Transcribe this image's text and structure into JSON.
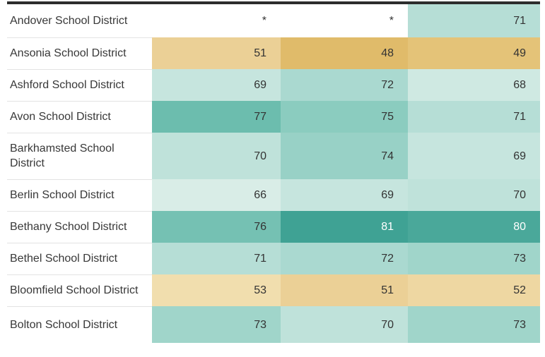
{
  "chart_data": {
    "type": "table",
    "header_visible": false,
    "missing_marker": "*",
    "rows": [
      {
        "label": "Andover School District",
        "values": [
          "*",
          "*",
          71
        ]
      },
      {
        "label": "Ansonia School District",
        "values": [
          51,
          48,
          49
        ]
      },
      {
        "label": "Ashford School District",
        "values": [
          69,
          72,
          68
        ]
      },
      {
        "label": "Avon School District",
        "values": [
          77,
          75,
          71
        ]
      },
      {
        "label": "Barkhamsted School District",
        "values": [
          70,
          74,
          69
        ]
      },
      {
        "label": "Berlin School District",
        "values": [
          66,
          69,
          70
        ]
      },
      {
        "label": "Bethany School District",
        "values": [
          76,
          81,
          80
        ]
      },
      {
        "label": "Bethel School District",
        "values": [
          71,
          72,
          73
        ]
      },
      {
        "label": "Bloomfield School District",
        "values": [
          53,
          51,
          52
        ]
      },
      {
        "label": "Bolton School District",
        "values": [
          73,
          70,
          73
        ]
      }
    ],
    "value_range_observed": [
      48,
      81
    ],
    "layout": {
      "columns": 4,
      "grid": "off",
      "heatmap_shading": true
    }
  },
  "palette": {
    "top_border": "#2d2d2d",
    "row_separator": "#e3e3e3",
    "name_text": "#383838",
    "value_text": "#333333",
    "missing_cell": {
      "bg": "#ffffff",
      "fg": "#333333"
    },
    "scale_low_color": "#e0bb6a",
    "scale_high_color": "#3fa294",
    "value_colors": {
      "48": {
        "bg": "#e0bb6a",
        "fg": "#333333"
      },
      "49": {
        "bg": "#e4c378",
        "fg": "#333333"
      },
      "51": {
        "bg": "#ebd096",
        "fg": "#333333"
      },
      "52": {
        "bg": "#eed7a2",
        "fg": "#333333"
      },
      "53": {
        "bg": "#f1deae",
        "fg": "#333333"
      },
      "66": {
        "bg": "#d9ede7",
        "fg": "#333333"
      },
      "68": {
        "bg": "#cfe9e2",
        "fg": "#333333"
      },
      "69": {
        "bg": "#c6e5de",
        "fg": "#333333"
      },
      "70": {
        "bg": "#bfe2da",
        "fg": "#333333"
      },
      "71": {
        "bg": "#b6ded6",
        "fg": "#333333"
      },
      "72": {
        "bg": "#aad9d0",
        "fg": "#333333"
      },
      "73": {
        "bg": "#a0d5ca",
        "fg": "#333333"
      },
      "74": {
        "bg": "#98d1c6",
        "fg": "#333333"
      },
      "75": {
        "bg": "#8bccbf",
        "fg": "#333333"
      },
      "76": {
        "bg": "#75c1b3",
        "fg": "#333333"
      },
      "77": {
        "bg": "#6cbdae",
        "fg": "#333333"
      },
      "80": {
        "bg": "#4aa89a",
        "fg": "#ffffff"
      },
      "81": {
        "bg": "#3fa294",
        "fg": "#ffffff"
      }
    }
  }
}
